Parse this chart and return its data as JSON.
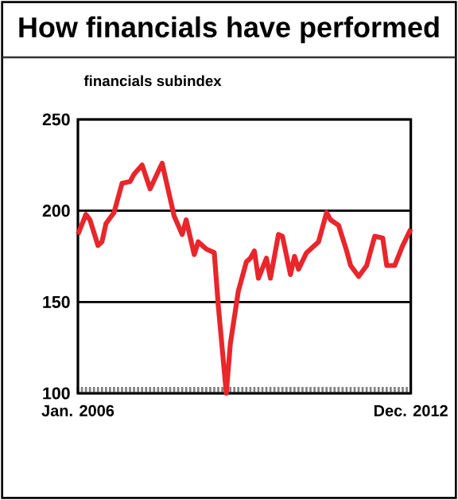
{
  "chart_data": {
    "type": "line",
    "title": "How financials have performed",
    "subtitle": "financials subindex",
    "x": [
      "2006-01",
      "2006-03",
      "2006-04",
      "2006-06",
      "2006-07",
      "2006-08",
      "2006-10",
      "2006-12",
      "2007-02",
      "2007-03",
      "2007-05",
      "2007-07",
      "2007-10",
      "2008-01",
      "2008-03",
      "2008-04",
      "2008-06",
      "2008-07",
      "2008-09",
      "2008-11",
      "2008-12",
      "2009-02",
      "2009-03",
      "2009-05",
      "2009-07",
      "2009-08",
      "2009-09",
      "2009-10",
      "2009-12",
      "2010-01",
      "2010-03",
      "2010-04",
      "2010-06",
      "2010-07",
      "2010-08",
      "2010-10",
      "2011-01",
      "2011-03",
      "2011-04",
      "2011-06",
      "2011-08",
      "2011-09",
      "2011-11",
      "2012-01",
      "2012-03",
      "2012-05",
      "2012-06",
      "2012-08",
      "2012-10",
      "2012-12"
    ],
    "series": [
      {
        "color": "#e8262b",
        "values": [
          187,
          198,
          195,
          181,
          183,
          193,
          199,
          215,
          216,
          220,
          225,
          212,
          226,
          197,
          187,
          195,
          176,
          183,
          179,
          177,
          148,
          100,
          127,
          156,
          172,
          174,
          178,
          163,
          174,
          163,
          187,
          186,
          165,
          175,
          168,
          177,
          183,
          199,
          195,
          192,
          178,
          170,
          164,
          170,
          186,
          185,
          170,
          170,
          181,
          190
        ]
      }
    ],
    "xlim": [
      "2006-01",
      "2012-12"
    ],
    "xticks": [
      {
        "value": "2006-01",
        "label": "Jan. 2006"
      },
      {
        "value": "2012-12",
        "label": "Dec. 2012"
      }
    ],
    "ylim": [
      100,
      250
    ],
    "yticks": [
      100,
      150,
      200,
      250
    ],
    "grid": "y"
  }
}
